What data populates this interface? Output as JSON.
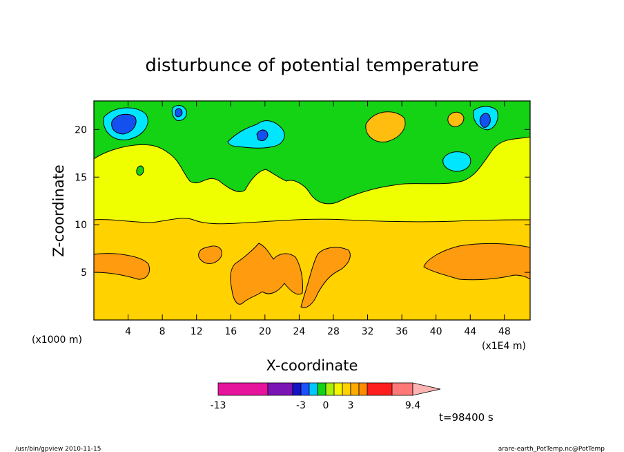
{
  "chart_data": {
    "type": "heatmap",
    "title": "disturbunce of potential temperature",
    "xlabel": "X-coordinate",
    "ylabel": "Z-coordinate",
    "x_unit_left": "(x1000 m)",
    "x_unit_right": "(x1E4 m)",
    "x_ticks": [
      4,
      8,
      12,
      16,
      20,
      24,
      28,
      32,
      36,
      40,
      44,
      48
    ],
    "y_ticks": [
      5,
      10,
      15,
      20
    ],
    "xlim": [
      0,
      51
    ],
    "ylim": [
      0,
      23
    ],
    "time_label": "t=98400 s",
    "colorbar": {
      "tick_labels": [
        "-13",
        "-3",
        "0",
        "3",
        "9.4"
      ],
      "tick_values": [
        -13,
        -3,
        0,
        3,
        9.4
      ],
      "colors": [
        "#e6149c",
        "#7a14b4",
        "#1414c8",
        "#1e50ff",
        "#00c8ff",
        "#14d214",
        "#aaf00a",
        "#f5f500",
        "#ffd200",
        "#ffaa00",
        "#ff8c00",
        "#ff1e1e",
        "#ff7878",
        "#ffb4b4"
      ]
    },
    "field_colors": {
      "yellow": "#f0ff00",
      "gold": "#ffd200",
      "orange": "#ff9b0f",
      "green": "#14d214",
      "cyan": "#00e6ff",
      "blue": "#1450f0",
      "navy": "#0a1ec8",
      "light_orange": "#ffbe0f"
    }
  },
  "footer": {
    "left": "/usr/bin/gpview   2010-11-15",
    "right": "arare-earth_PotTemp.nc@PotTemp"
  }
}
